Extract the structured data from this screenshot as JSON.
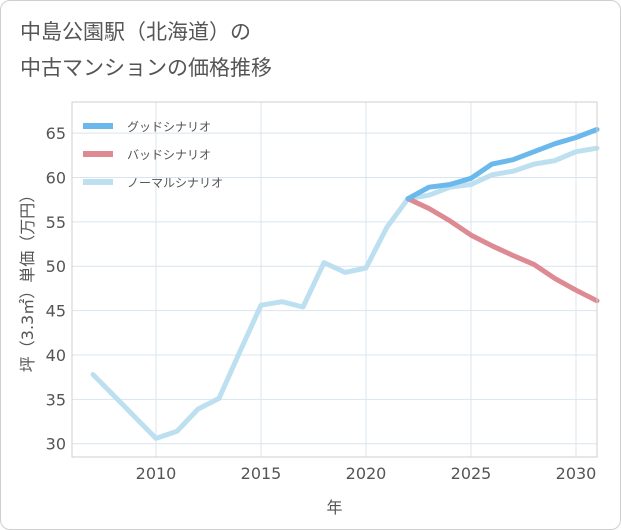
{
  "title_line1": "中島公園駅（北海道）の",
  "title_line2": "中古マンションの価格推移",
  "colors": {
    "good": "#6bb8ec",
    "bad": "#dd8a93",
    "normal": "#bde0f0",
    "grid": "#d9e4ee",
    "frame": "#cfcfcf"
  },
  "chart_data": {
    "type": "line",
    "title": "中島公園駅（北海道）の中古マンションの価格推移",
    "xlabel": "年",
    "ylabel": "坪（3.3㎡）単価（万円）",
    "xlim": [
      2006,
      2031
    ],
    "ylim": [
      28.5,
      68.5
    ],
    "xticks": [
      2010,
      2015,
      2020,
      2025,
      2030
    ],
    "yticks": [
      30,
      35,
      40,
      45,
      50,
      55,
      60,
      65
    ],
    "legend_position": "top-left",
    "series": [
      {
        "name": "グッドシナリオ",
        "color": "#6bb8ec",
        "x": [
          2022,
          2023,
          2024,
          2025,
          2026,
          2027,
          2028,
          2029,
          2030,
          2031
        ],
        "values": [
          57.6,
          58.9,
          59.2,
          59.9,
          61.5,
          62.0,
          62.9,
          63.8,
          64.5,
          65.4
        ]
      },
      {
        "name": "バッドシナリオ",
        "color": "#dd8a93",
        "x": [
          2022,
          2023,
          2024,
          2025,
          2026,
          2027,
          2028,
          2029,
          2030,
          2031
        ],
        "values": [
          57.6,
          56.5,
          55.1,
          53.5,
          52.3,
          51.2,
          50.2,
          48.6,
          47.3,
          46.1
        ]
      },
      {
        "name": "ノーマルシナリオ",
        "color": "#bde0f0",
        "x": [
          2007,
          2008,
          2009,
          2010,
          2011,
          2012,
          2013,
          2014,
          2015,
          2016,
          2017,
          2018,
          2019,
          2020,
          2021,
          2022,
          2023,
          2024,
          2025,
          2026,
          2027,
          2028,
          2029,
          2030,
          2031
        ],
        "values": [
          37.8,
          35.4,
          33.0,
          30.6,
          31.4,
          33.9,
          35.1,
          40.4,
          45.6,
          46.0,
          45.4,
          50.4,
          49.3,
          49.8,
          54.4,
          57.6,
          58.0,
          58.9,
          59.2,
          60.3,
          60.7,
          61.5,
          61.9,
          62.9,
          63.3
        ]
      }
    ]
  }
}
